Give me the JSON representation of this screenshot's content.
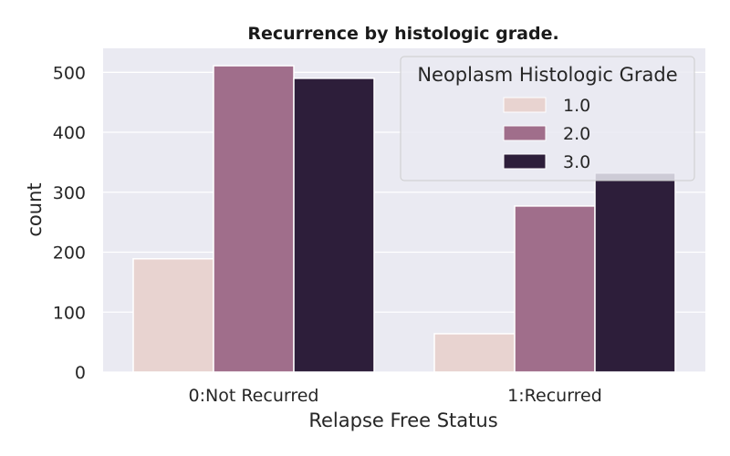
{
  "chart_data": {
    "type": "bar",
    "title": "Recurrence by histologic grade.",
    "xlabel": "Relapse Free Status",
    "ylabel": "count",
    "categories": [
      "0:Not Recurred",
      "1:Recurred"
    ],
    "ylim": [
      0,
      540
    ],
    "yticks": [
      0,
      100,
      200,
      300,
      400,
      500
    ],
    "grid": true,
    "legend": {
      "title": "Neoplasm Histologic Grade",
      "placement": "top-right"
    },
    "series": [
      {
        "name": "1.0",
        "color": "#e8d3d0",
        "values": [
          189,
          64
        ]
      },
      {
        "name": "2.0",
        "color": "#a06e8b",
        "values": [
          511,
          277
        ]
      },
      {
        "name": "3.0",
        "color": "#2d1e3a",
        "values": [
          490,
          332
        ]
      }
    ]
  }
}
